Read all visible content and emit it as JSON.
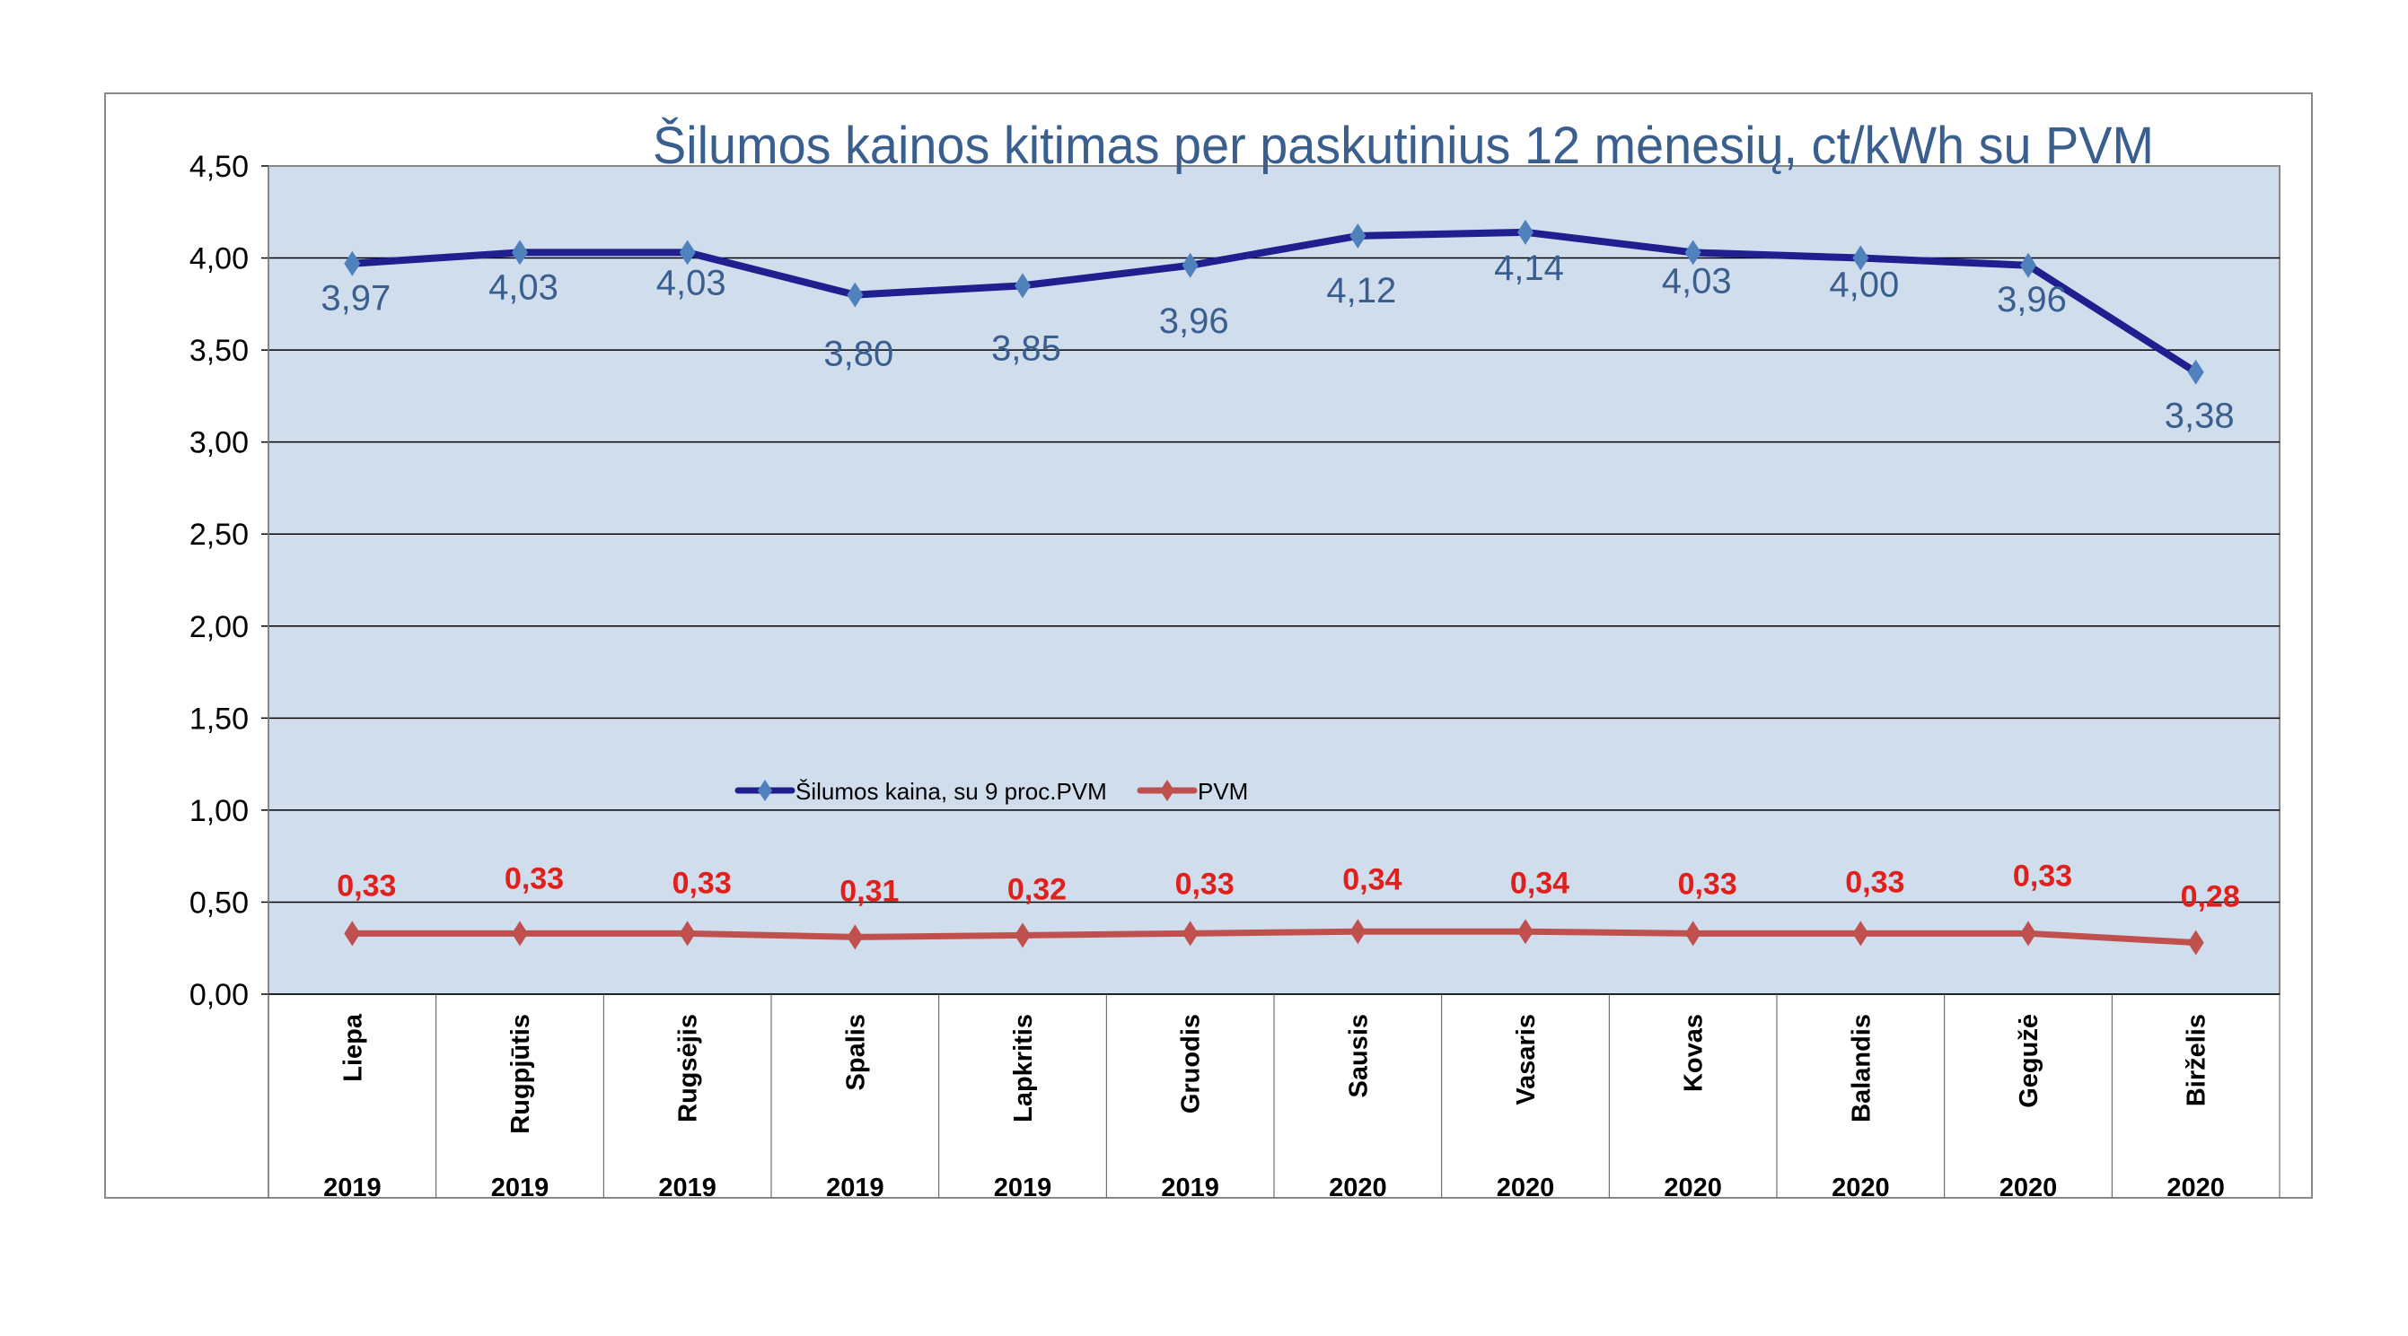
{
  "chart_data": {
    "type": "line",
    "title": "Šilumos kainos kitimas per paskutinius 12 mėnesių, ct/kWh su PVM",
    "categories": [
      "Liepa",
      "Rugpjūtis",
      "Rugsėjis",
      "Spalis",
      "Lapkritis",
      "Gruodis",
      "Sausis",
      "Vasaris",
      "Kovas",
      "Balandis",
      "Gegužė",
      "Birželis"
    ],
    "years": [
      "2019",
      "2019",
      "2019",
      "2019",
      "2019",
      "2019",
      "2020",
      "2020",
      "2020",
      "2020",
      "2020",
      "2020"
    ],
    "series": [
      {
        "name": "Šilumos kaina, su 9 proc.PVM",
        "color": "#1f1f8f",
        "marker_color": "#4f81bd",
        "label_color": "#3a5f8f",
        "values": [
          3.97,
          4.03,
          4.03,
          3.8,
          3.85,
          3.96,
          4.12,
          4.14,
          4.03,
          4.0,
          3.96,
          3.38
        ],
        "labels": [
          "3,97",
          "4,03",
          "4,03",
          "3,80",
          "3,85",
          "3,96",
          "4,12",
          "4,14",
          "4,03",
          "4,00",
          "3,96",
          "3,38"
        ]
      },
      {
        "name": "PVM",
        "color": "#c0504d",
        "marker_color": "#c0504d",
        "label_color": "#e0201c",
        "values": [
          0.33,
          0.33,
          0.33,
          0.31,
          0.32,
          0.33,
          0.34,
          0.34,
          0.33,
          0.33,
          0.33,
          0.28
        ],
        "labels": [
          "0,33",
          "0,33",
          "0,33",
          "0,31",
          "0,32",
          "0,33",
          "0,34",
          "0,34",
          "0,33",
          "0,33",
          "0,33",
          "0,28"
        ]
      }
    ],
    "ylim": [
      0,
      4.5
    ],
    "yticks": [
      "0,00",
      "0,50",
      "1,00",
      "1,50",
      "2,00",
      "2,50",
      "3,00",
      "3,50",
      "4,00",
      "4,50"
    ],
    "ytick_values": [
      0,
      0.5,
      1,
      1.5,
      2,
      2.5,
      3,
      3.5,
      4,
      4.5
    ],
    "grid": true,
    "legend": "center",
    "plot_background": "#d0dded",
    "xlabel": "",
    "ylabel": ""
  }
}
